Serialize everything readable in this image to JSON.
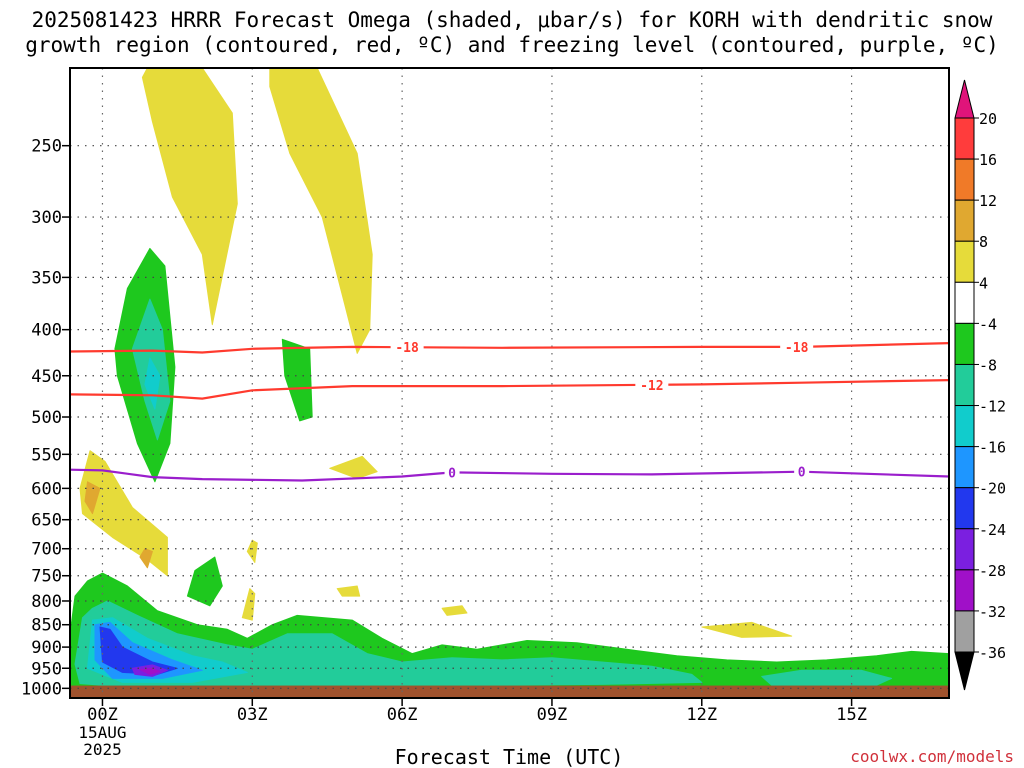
{
  "chart_data": {
    "type": "heatmap",
    "title_lines": [
      "2025081423 HRRR Forecast Omega (shaded, μbar/s) for KORH with dendritic snow",
      "growth region (contoured, red, ºC) and freezing level (contoured, purple, ºC)"
    ],
    "xlabel": "Forecast Time (UTC)",
    "credit": "coolwx.com/models",
    "x_ticks": [
      {
        "hour": 0,
        "label": "00Z"
      },
      {
        "hour": 3,
        "label": "03Z"
      },
      {
        "hour": 6,
        "label": "06Z"
      },
      {
        "hour": 9,
        "label": "09Z"
      },
      {
        "hour": 12,
        "label": "12Z"
      },
      {
        "hour": 15,
        "label": "15Z"
      }
    ],
    "x_first_sublabels": [
      "15AUG",
      "2025"
    ],
    "xlim_hours": [
      -0.65,
      16.95
    ],
    "ylim_hpa": [
      205,
      1025
    ],
    "y_ticks": [
      250,
      300,
      350,
      400,
      450,
      500,
      550,
      600,
      650,
      700,
      750,
      800,
      850,
      900,
      950,
      1000
    ],
    "grid": true,
    "contours": [
      {
        "label": "-18",
        "color": "#ff3a2e",
        "label_hours": [
          6.1,
          13.9
        ],
        "points": [
          [
            -0.65,
            423
          ],
          [
            1,
            422
          ],
          [
            2,
            424
          ],
          [
            3,
            420
          ],
          [
            5,
            418
          ],
          [
            8,
            419
          ],
          [
            12,
            418
          ],
          [
            14,
            418
          ],
          [
            16.95,
            414
          ]
        ]
      },
      {
        "label": "-12",
        "color": "#ff3a2e",
        "label_hours": [
          11
        ],
        "points": [
          [
            -0.65,
            472
          ],
          [
            1,
            473
          ],
          [
            2,
            477
          ],
          [
            3,
            467
          ],
          [
            5,
            462
          ],
          [
            8,
            462
          ],
          [
            12,
            460
          ],
          [
            14,
            458
          ],
          [
            16.95,
            455
          ]
        ]
      },
      {
        "label": "0",
        "color": "#9a1ecc",
        "label_hours": [
          7,
          14
        ],
        "points": [
          [
            -0.65,
            572
          ],
          [
            0,
            573
          ],
          [
            1,
            583
          ],
          [
            2,
            586
          ],
          [
            4,
            588
          ],
          [
            6,
            582
          ],
          [
            7,
            576
          ],
          [
            9,
            578
          ],
          [
            11,
            579
          ],
          [
            14,
            575
          ],
          [
            16.95,
            582
          ]
        ]
      }
    ],
    "omega_shaded": [
      {
        "level": 4,
        "color": "#e6db3a",
        "polys": [
          [
            [
              0.9,
              205
            ],
            [
              2.0,
              205
            ],
            [
              2.6,
              230
            ],
            [
              2.7,
              290
            ],
            [
              2.2,
              395
            ],
            [
              2.0,
              330
            ],
            [
              1.4,
              285
            ],
            [
              1.0,
              235
            ],
            [
              0.8,
              210
            ]
          ],
          [
            [
              3.35,
              205
            ],
            [
              4.3,
              205
            ],
            [
              5.1,
              255
            ],
            [
              5.4,
              330
            ],
            [
              5.35,
              400
            ],
            [
              5.1,
              425
            ],
            [
              4.85,
              375
            ],
            [
              4.4,
              300
            ],
            [
              3.75,
              255
            ],
            [
              3.35,
              215
            ]
          ],
          [
            [
              -0.25,
              545
            ],
            [
              0.05,
              560
            ],
            [
              0.6,
              630
            ],
            [
              1.3,
              680
            ],
            [
              1.3,
              750
            ],
            [
              0.9,
              720
            ],
            [
              0.2,
              680
            ],
            [
              -0.4,
              640
            ],
            [
              -0.45,
              600
            ]
          ],
          [
            [
              4.55,
              570
            ],
            [
              5.2,
              553
            ],
            [
              5.5,
              575
            ],
            [
              5.1,
              585
            ]
          ],
          [
            [
              3.0,
              685
            ],
            [
              3.1,
              690
            ],
            [
              3.05,
              725
            ],
            [
              2.9,
              705
            ]
          ],
          [
            [
              2.95,
              775
            ],
            [
              3.05,
              785
            ],
            [
              3.0,
              840
            ],
            [
              2.8,
              835
            ]
          ],
          [
            [
              4.7,
              775
            ],
            [
              5.1,
              770
            ],
            [
              5.15,
              790
            ],
            [
              4.8,
              790
            ]
          ],
          [
            [
              6.8,
              815
            ],
            [
              7.2,
              810
            ],
            [
              7.3,
              825
            ],
            [
              6.9,
              830
            ]
          ],
          [
            [
              12.0,
              855
            ],
            [
              13.0,
              845
            ],
            [
              13.8,
              875
            ],
            [
              12.8,
              878
            ]
          ]
        ]
      },
      {
        "level": 8,
        "color": "#e0a830",
        "polys": [
          [
            [
              -0.3,
              590
            ],
            [
              -0.05,
              600
            ],
            [
              -0.2,
              640
            ],
            [
              -0.35,
              620
            ]
          ],
          [
            [
              0.85,
              700
            ],
            [
              1.0,
              705
            ],
            [
              0.9,
              735
            ],
            [
              0.75,
              715
            ]
          ]
        ]
      },
      {
        "level": -4,
        "color": "#1ec81e",
        "polys": [
          [
            [
              0.95,
              325
            ],
            [
              1.25,
              340
            ],
            [
              1.45,
              440
            ],
            [
              1.35,
              535
            ],
            [
              1.05,
              590
            ],
            [
              0.7,
              535
            ],
            [
              0.3,
              450
            ],
            [
              0.25,
              420
            ],
            [
              0.5,
              360
            ]
          ],
          [
            [
              3.6,
              410
            ],
            [
              4.15,
              420
            ],
            [
              4.2,
              500
            ],
            [
              3.95,
              505
            ],
            [
              3.65,
              450
            ]
          ],
          [
            [
              1.85,
              740
            ],
            [
              2.25,
              715
            ],
            [
              2.4,
              770
            ],
            [
              2.15,
              810
            ],
            [
              1.7,
              790
            ]
          ],
          [
            [
              -0.55,
              790
            ],
            [
              -0.3,
              760
            ],
            [
              0,
              745
            ],
            [
              0.5,
              770
            ],
            [
              1.1,
              820
            ],
            [
              1.9,
              850
            ],
            [
              2.5,
              860
            ],
            [
              2.9,
              880
            ],
            [
              3.4,
              850
            ],
            [
              3.9,
              830
            ],
            [
              5.0,
              840
            ],
            [
              5.6,
              880
            ],
            [
              6.2,
              915
            ],
            [
              6.8,
              895
            ],
            [
              7.5,
              905
            ],
            [
              8.5,
              885
            ],
            [
              9.5,
              890
            ],
            [
              10.5,
              905
            ],
            [
              11.5,
              920
            ],
            [
              12.5,
              930
            ],
            [
              13.5,
              935
            ],
            [
              14.5,
              930
            ],
            [
              15.5,
              920
            ],
            [
              16.2,
              910
            ],
            [
              16.95,
              915
            ],
            [
              16.95,
              1025
            ],
            [
              -0.65,
              1025
            ],
            [
              -0.65,
              870
            ]
          ]
        ]
      },
      {
        "level": -8,
        "color": "#22cc9a",
        "polys": [
          [
            [
              0.95,
              370
            ],
            [
              1.2,
              400
            ],
            [
              1.35,
              480
            ],
            [
              1.1,
              530
            ],
            [
              0.85,
              480
            ],
            [
              0.6,
              420
            ]
          ],
          [
            [
              -0.4,
              835
            ],
            [
              -0.2,
              815
            ],
            [
              0.1,
              800
            ],
            [
              0.7,
              830
            ],
            [
              1.5,
              870
            ],
            [
              2.5,
              895
            ],
            [
              3.0,
              905
            ],
            [
              3.7,
              870
            ],
            [
              4.6,
              870
            ],
            [
              5.3,
              915
            ],
            [
              6,
              935
            ],
            [
              7,
              925
            ],
            [
              8,
              930
            ],
            [
              9,
              925
            ],
            [
              10,
              935
            ],
            [
              11,
              945
            ],
            [
              11.8,
              965
            ],
            [
              12,
              985
            ],
            [
              10,
              990
            ],
            [
              8,
              992
            ],
            [
              6,
              992
            ],
            [
              4,
              992
            ],
            [
              2,
              992
            ],
            [
              0,
              992
            ],
            [
              -0.45,
              988
            ],
            [
              -0.55,
              940
            ]
          ],
          [
            [
              13.2,
              970
            ],
            [
              14,
              955
            ],
            [
              15.2,
              955
            ],
            [
              15.8,
              975
            ],
            [
              15.5,
              992
            ],
            [
              13.4,
              992
            ]
          ]
        ]
      },
      {
        "level": -12,
        "color": "#11cccc",
        "polys": [
          [
            [
              0.95,
              430
            ],
            [
              1.15,
              450
            ],
            [
              1.05,
              490
            ],
            [
              0.85,
              460
            ]
          ],
          [
            [
              -0.2,
              840
            ],
            [
              0.2,
              835
            ],
            [
              0.9,
              880
            ],
            [
              1.8,
              920
            ],
            [
              2.4,
              935
            ],
            [
              2.9,
              960
            ],
            [
              1.8,
              985
            ],
            [
              0.4,
              985
            ],
            [
              -0.3,
              950
            ]
          ]
        ]
      },
      {
        "level": -16,
        "color": "#1e96ff",
        "polys": [
          [
            [
              -0.15,
              850
            ],
            [
              0.15,
              845
            ],
            [
              0.6,
              890
            ],
            [
              1.4,
              930
            ],
            [
              2.0,
              955
            ],
            [
              1.2,
              975
            ],
            [
              0.2,
              975
            ],
            [
              -0.15,
              930
            ]
          ]
        ]
      },
      {
        "level": -20,
        "color": "#2238ee",
        "polys": [
          [
            [
              -0.05,
              855
            ],
            [
              0.15,
              860
            ],
            [
              0.4,
              900
            ],
            [
              1.0,
              935
            ],
            [
              1.5,
              950
            ],
            [
              1.1,
              965
            ],
            [
              0.4,
              960
            ],
            [
              0,
              935
            ]
          ]
        ]
      },
      {
        "level": -24,
        "color": "#7b1fe0",
        "polys": [
          [
            [
              0.6,
              950
            ],
            [
              1.0,
              942
            ],
            [
              1.3,
              955
            ],
            [
              1.0,
              970
            ],
            [
              0.65,
              965
            ]
          ]
        ]
      },
      {
        "level": -28,
        "color": "#a010c8",
        "polys": [
          [
            [
              0.75,
              953
            ],
            [
              1.0,
              950
            ],
            [
              1.15,
              958
            ],
            [
              0.95,
              965
            ]
          ]
        ]
      }
    ],
    "terrain": {
      "top_hpa": 993,
      "color": "#a0522d"
    },
    "colorbar": {
      "labels": [
        "20",
        "16",
        "12",
        "8",
        "4",
        "-4",
        "-8",
        "-12",
        "-16",
        "-20",
        "-24",
        "-28",
        "-32",
        "-36"
      ],
      "segments": [
        {
          "color": "#e0147a",
          "shape": "triangle-up"
        },
        {
          "color": "#ff3c3c"
        },
        {
          "color": "#f07a28"
        },
        {
          "color": "#e0a830"
        },
        {
          "color": "#e6db3a"
        },
        {
          "color": "#ffffff"
        },
        {
          "color": "#1ec81e"
        },
        {
          "color": "#22cc9a"
        },
        {
          "color": "#11cccc"
        },
        {
          "color": "#1e96ff"
        },
        {
          "color": "#2238ee"
        },
        {
          "color": "#7b1fe0"
        },
        {
          "color": "#a010c8"
        },
        {
          "color": "#a0a0a0"
        },
        {
          "color": "#000000",
          "shape": "triangle-down"
        }
      ]
    }
  }
}
